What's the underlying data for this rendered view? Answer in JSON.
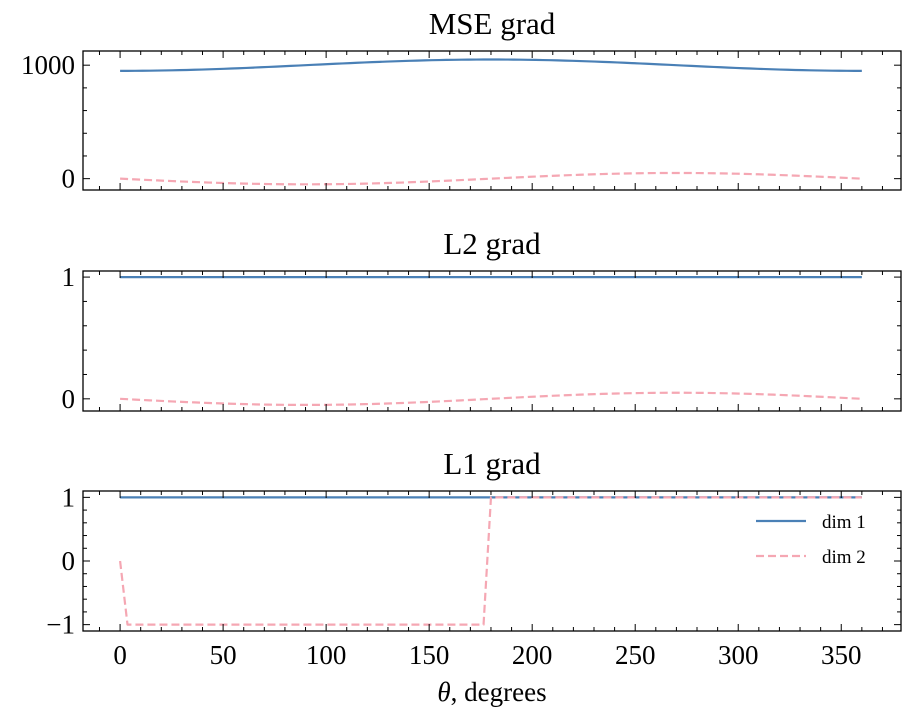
{
  "colors": {
    "dim1": "#4a80b6",
    "dim2": "#f5a7b3",
    "axis": "#000000"
  },
  "chart_data": [
    {
      "type": "line",
      "title": "MSE grad",
      "xlabel": "",
      "ylabel": "",
      "xlim": [
        -18,
        379
      ],
      "ylim": [
        -100,
        1125
      ],
      "yticks": [
        0,
        1000
      ],
      "ytick_labels": [
        "0",
        "1000"
      ],
      "yminor_step": 200,
      "xticks": [
        0,
        50,
        100,
        150,
        200,
        250,
        300,
        350
      ],
      "xminor_step": 10,
      "show_xtick_labels": false,
      "grid": false,
      "series": [
        {
          "name": "dim 1",
          "style": "solid",
          "func": "mse1"
        },
        {
          "name": "dim 2",
          "style": "dashed",
          "func": "mse2"
        }
      ]
    },
    {
      "type": "line",
      "title": "L2 grad",
      "xlabel": "",
      "ylabel": "",
      "xlim": [
        -18,
        379
      ],
      "ylim": [
        -0.1,
        1.05
      ],
      "yticks": [
        0,
        1
      ],
      "ytick_labels": [
        "0",
        "1"
      ],
      "yminor_step": 0.2,
      "xticks": [
        0,
        50,
        100,
        150,
        200,
        250,
        300,
        350
      ],
      "xminor_step": 10,
      "show_xtick_labels": false,
      "grid": false,
      "series": [
        {
          "name": "dim 1",
          "style": "solid",
          "func": "l2_1"
        },
        {
          "name": "dim 2",
          "style": "dashed",
          "func": "l2_2"
        }
      ]
    },
    {
      "type": "line",
      "title": "L1 grad",
      "xlabel": "θ, degrees",
      "xlabel_italic_part": "θ",
      "xlabel_rest": ", degrees",
      "ylabel": "",
      "xlim": [
        -18,
        379
      ],
      "ylim": [
        -1.1,
        1.1
      ],
      "yticks": [
        -1,
        0,
        1
      ],
      "ytick_labels": [
        "−1",
        "0",
        "1"
      ],
      "yminor_step": 0.2,
      "xticks": [
        0,
        50,
        100,
        150,
        200,
        250,
        300,
        350
      ],
      "xtick_labels": [
        "0",
        "50",
        "100",
        "150",
        "200",
        "250",
        "300",
        "350"
      ],
      "xminor_step": 10,
      "show_xtick_labels": true,
      "grid": false,
      "legend": {
        "position": "right",
        "entries": [
          "dim 1",
          "dim 2"
        ]
      },
      "series": [
        {
          "name": "dim 1",
          "style": "solid",
          "func": "l1_1"
        },
        {
          "name": "dim 2",
          "style": "dashed",
          "func": "l1_2"
        }
      ]
    }
  ],
  "sampling": {
    "n_points": 101,
    "theta_range_deg": [
      0,
      360
    ]
  },
  "series_formulas": {
    "mse1": "1000 - 50*cos(theta)",
    "mse2": "-50*sin(theta)",
    "l2_1": "1",
    "l2_2": "-0.05*sin(theta)",
    "l1_1": "1",
    "l1_2": "sign(-sin(theta)) with 0 at theta=0"
  }
}
